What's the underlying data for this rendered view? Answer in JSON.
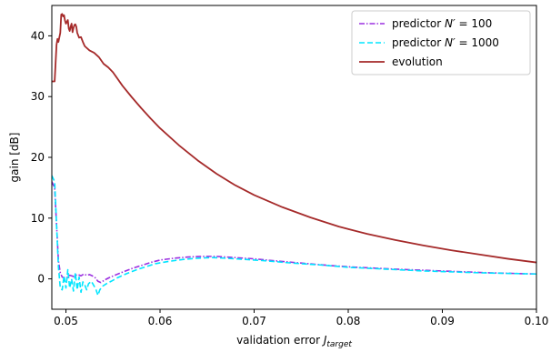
{
  "chart_data": {
    "type": "line",
    "xlabel": "validation error J",
    "xlabel_sub": "target",
    "ylabel": "gain [dB]",
    "xlim": [
      0.0485,
      0.1
    ],
    "ylim": [
      -5,
      45
    ],
    "xticks": [
      0.05,
      0.06,
      0.07,
      0.08,
      0.09,
      0.1
    ],
    "xtick_labels": [
      "0.05",
      "0.06",
      "0.07",
      "0.08",
      "0.09",
      "0.10"
    ],
    "yticks": [
      0,
      10,
      20,
      30,
      40
    ],
    "ytick_labels": [
      "0",
      "10",
      "20",
      "30",
      "40"
    ],
    "grid": false,
    "legend_position": "top-right",
    "series": [
      {
        "name": "predictor N′ = 100",
        "legend_label": "predictor N′ = 100",
        "color": "#9b30e0",
        "style": "dashdot",
        "x": [
          0.0485,
          0.0488,
          0.049,
          0.0492,
          0.0494,
          0.0496,
          0.0498,
          0.05,
          0.0502,
          0.0504,
          0.0506,
          0.0508,
          0.051,
          0.0513,
          0.0516,
          0.0519,
          0.0522,
          0.0525,
          0.0528,
          0.0531,
          0.0534,
          0.0537,
          0.0541,
          0.0546,
          0.0552,
          0.056,
          0.057,
          0.058,
          0.059,
          0.06,
          0.0615,
          0.063,
          0.0645,
          0.066,
          0.068,
          0.07,
          0.072,
          0.075,
          0.078,
          0.081,
          0.085,
          0.09,
          0.095,
          0.1
        ],
        "y": [
          16.0,
          15.0,
          9.0,
          3.0,
          1.0,
          0.3,
          0.2,
          0.1,
          0.3,
          0.6,
          0.5,
          0.4,
          0.6,
          0.7,
          0.5,
          0.8,
          0.6,
          0.7,
          0.5,
          0.2,
          -0.4,
          -0.6,
          -0.2,
          0.2,
          0.6,
          1.1,
          1.7,
          2.2,
          2.7,
          3.1,
          3.4,
          3.6,
          3.7,
          3.7,
          3.5,
          3.3,
          3.0,
          2.6,
          2.2,
          1.9,
          1.6,
          1.3,
          1.0,
          0.8
        ]
      },
      {
        "name": "predictor N′ = 1000",
        "legend_label": "predictor N′ = 1000",
        "color": "#00e5ff",
        "style": "dashed",
        "x": [
          0.0485,
          0.0488,
          0.049,
          0.0492,
          0.0494,
          0.0496,
          0.0498,
          0.05,
          0.0502,
          0.0504,
          0.0506,
          0.0508,
          0.051,
          0.0512,
          0.0514,
          0.0516,
          0.0518,
          0.052,
          0.0522,
          0.0524,
          0.0527,
          0.053,
          0.0532,
          0.0534,
          0.0536,
          0.0539,
          0.0543,
          0.0548,
          0.0555,
          0.0565,
          0.0575,
          0.0585,
          0.0595,
          0.061,
          0.0625,
          0.064,
          0.0655,
          0.067,
          0.069,
          0.071,
          0.074,
          0.077,
          0.08,
          0.084,
          0.088,
          0.094,
          0.1
        ],
        "y": [
          17.0,
          16.0,
          9.0,
          2.0,
          -1.5,
          -1.8,
          0.5,
          -1.5,
          1.5,
          -1.5,
          0.0,
          -2.0,
          1.0,
          -1.8,
          0.3,
          -2.2,
          -0.5,
          -1.0,
          -1.8,
          -0.8,
          -0.4,
          -1.2,
          -1.8,
          -2.7,
          -1.8,
          -1.2,
          -0.8,
          -0.4,
          0.2,
          0.9,
          1.5,
          2.0,
          2.5,
          2.9,
          3.2,
          3.4,
          3.5,
          3.4,
          3.2,
          3.0,
          2.6,
          2.3,
          1.9,
          1.6,
          1.3,
          1.0,
          0.8
        ]
      },
      {
        "name": "evolution",
        "legend_label": "evolution",
        "color": "#a52a2a",
        "style": "solid",
        "x": [
          0.0485,
          0.0488,
          0.049,
          0.0491,
          0.0492,
          0.0494,
          0.0495,
          0.0496,
          0.0497,
          0.0498,
          0.0499,
          0.05,
          0.0502,
          0.0503,
          0.0504,
          0.0505,
          0.0506,
          0.0507,
          0.0508,
          0.0509,
          0.051,
          0.0511,
          0.0512,
          0.0514,
          0.0516,
          0.0518,
          0.052,
          0.0525,
          0.053,
          0.0535,
          0.054,
          0.0545,
          0.055,
          0.056,
          0.057,
          0.058,
          0.059,
          0.06,
          0.062,
          0.064,
          0.066,
          0.068,
          0.07,
          0.073,
          0.076,
          0.079,
          0.082,
          0.085,
          0.088,
          0.091,
          0.094,
          0.097,
          0.1
        ],
        "y": [
          32.5,
          32.5,
          38.5,
          39.5,
          39.0,
          40.5,
          43.5,
          43.6,
          43.2,
          43.4,
          42.5,
          42.0,
          42.6,
          41.2,
          40.8,
          41.5,
          42.0,
          40.6,
          41.3,
          41.8,
          41.9,
          41.5,
          40.5,
          39.7,
          39.8,
          39.0,
          38.3,
          37.6,
          37.2,
          36.5,
          35.4,
          34.8,
          34.0,
          31.8,
          29.9,
          28.1,
          26.4,
          24.8,
          22.0,
          19.5,
          17.3,
          15.4,
          13.8,
          11.8,
          10.1,
          8.6,
          7.4,
          6.4,
          5.5,
          4.7,
          4.0,
          3.3,
          2.7
        ]
      }
    ]
  }
}
